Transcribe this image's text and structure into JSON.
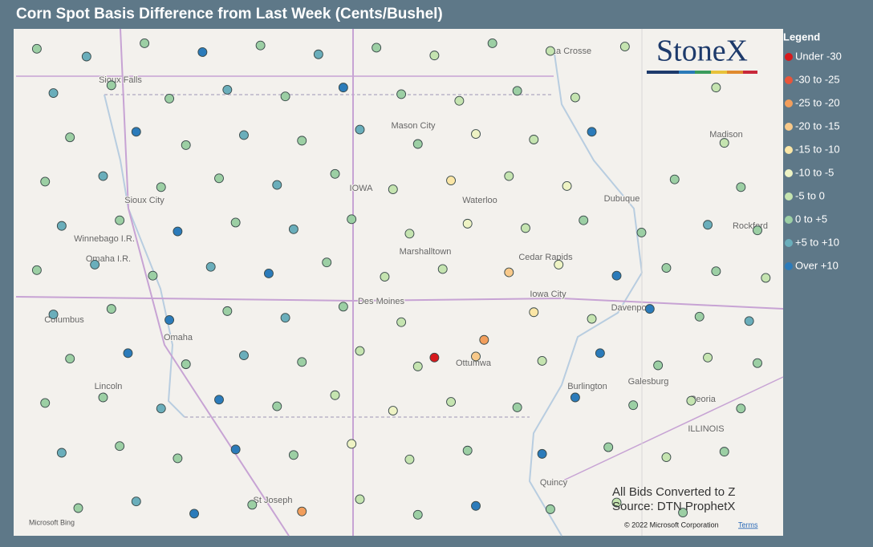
{
  "header": {
    "title": "Corn Spot Basis Difference from Last Week (Cents/Bushel)"
  },
  "logo": "StoneX",
  "legend": {
    "title": "Legend",
    "items": [
      {
        "label": "Under -30",
        "color": "#d7191c"
      },
      {
        "label": "-30 to -25",
        "color": "#e8553a"
      },
      {
        "label": "-25 to -20",
        "color": "#f29e5c"
      },
      {
        "label": "-20 to -15",
        "color": "#f8c98a"
      },
      {
        "label": "-15 to -10",
        "color": "#fbe6a6"
      },
      {
        "label": "-10 to -5",
        "color": "#eef3c4"
      },
      {
        "label": "-5 to 0",
        "color": "#c5e4b0"
      },
      {
        "label": "0 to +5",
        "color": "#9ccfa4"
      },
      {
        "label": "+5 to +10",
        "color": "#6aaebb"
      },
      {
        "label": "Over +10",
        "color": "#2b7bba"
      }
    ]
  },
  "map": {
    "labels": [
      "IOWA",
      "ILLINOIS",
      "Mason City",
      "Waterloo",
      "Dubuque",
      "Rockford",
      "Madison",
      "La Crosse",
      "Sioux Falls",
      "Sioux City",
      "Winnebago I.R.",
      "Omaha I.R.",
      "Columbus",
      "Omaha",
      "Lincoln",
      "Marshalltown",
      "Cedar Rapids",
      "Des Moines",
      "Iowa City",
      "Davenport",
      "Ottumwa",
      "Burlington",
      "Galesburg",
      "Peoria",
      "Quincy",
      "St Joseph"
    ],
    "stations": {
      "lon": [
        -97.7,
        -97.1,
        -96.4,
        -95.7,
        -95.0,
        -94.3,
        -93.6,
        -92.9,
        -92.2,
        -91.5,
        -90.6,
        -97.5,
        -96.8,
        -96.1,
        -95.4,
        -94.7,
        -94.0,
        -93.3,
        -92.6,
        -91.9,
        -91.2,
        -89.5,
        -97.3,
        -96.5,
        -95.9,
        -95.2,
        -94.5,
        -93.8,
        -93.1,
        -92.4,
        -91.7,
        -91.0,
        -89.4,
        -97.6,
        -96.9,
        -96.2,
        -95.5,
        -94.8,
        -94.1,
        -93.4,
        -92.7,
        -92.0,
        -91.3,
        -90.0,
        -89.2,
        -97.4,
        -96.7,
        -96.0,
        -95.3,
        -94.6,
        -93.9,
        -93.2,
        -92.5,
        -91.8,
        -91.1,
        -90.4,
        -89.6,
        -89.0,
        -97.7,
        -97.0,
        -96.3,
        -95.6,
        -94.9,
        -94.2,
        -93.5,
        -92.8,
        -92.0,
        -91.4,
        -90.7,
        -90.1,
        -89.5,
        -88.9,
        -97.5,
        -96.8,
        -96.1,
        -95.4,
        -94.7,
        -94.0,
        -93.3,
        -92.9,
        -92.3,
        -91.7,
        -91.0,
        -90.3,
        -89.7,
        -89.1,
        -97.3,
        -96.6,
        -95.9,
        -95.2,
        -94.5,
        -93.8,
        -93.1,
        -92.4,
        -91.6,
        -90.9,
        -90.2,
        -89.6,
        -89.0,
        -97.6,
        -96.9,
        -96.2,
        -95.5,
        -94.8,
        -94.1,
        -93.4,
        -92.7,
        -91.9,
        -91.2,
        -90.5,
        -89.8,
        -89.2,
        -97.4,
        -96.7,
        -96.0,
        -95.3,
        -94.6,
        -93.9,
        -93.2,
        -92.5,
        -91.6,
        -90.8,
        -90.1,
        -89.4,
        -97.2,
        -96.5,
        -95.8,
        -95.1,
        -94.5,
        -93.8,
        -93.1,
        -92.4,
        -91.5,
        -90.7,
        -89.9
      ],
      "lat": [
        43.85,
        43.78,
        43.9,
        43.82,
        43.88,
        43.8,
        43.86,
        43.79,
        43.9,
        43.83,
        43.87,
        43.45,
        43.52,
        43.4,
        43.48,
        43.42,
        43.5,
        43.44,
        43.38,
        43.47,
        43.41,
        43.5,
        43.05,
        43.1,
        42.98,
        43.07,
        43.02,
        43.12,
        42.99,
        43.08,
        43.03,
        43.1,
        43.0,
        42.65,
        42.7,
        42.6,
        42.68,
        42.62,
        42.72,
        42.58,
        42.66,
        42.7,
        42.61,
        42.67,
        42.6,
        42.25,
        42.3,
        42.2,
        42.28,
        42.22,
        42.31,
        42.18,
        42.27,
        42.23,
        42.3,
        42.19,
        42.26,
        42.21,
        41.85,
        41.9,
        41.8,
        41.88,
        41.82,
        41.92,
        41.79,
        41.86,
        41.83,
        41.9,
        41.8,
        41.87,
        41.84,
        41.78,
        41.45,
        41.5,
        41.4,
        41.48,
        41.42,
        41.52,
        41.38,
        41.06,
        41.22,
        41.47,
        41.41,
        41.5,
        41.43,
        41.39,
        41.05,
        41.1,
        41.0,
        41.08,
        41.02,
        41.12,
        40.98,
        41.07,
        41.03,
        41.1,
        40.99,
        41.06,
        41.01,
        40.65,
        40.7,
        40.6,
        40.68,
        40.62,
        40.72,
        40.58,
        40.66,
        40.61,
        40.7,
        40.63,
        40.67,
        40.6,
        40.2,
        40.26,
        40.15,
        40.23,
        40.18,
        40.28,
        40.14,
        40.22,
        40.19,
        40.25,
        40.16,
        40.21,
        39.7,
        39.76,
        39.65,
        39.73,
        39.67,
        39.78,
        39.64,
        39.72,
        39.69,
        39.75,
        39.66
      ],
      "bin": [
        7,
        8,
        7,
        9,
        7,
        8,
        7,
        6,
        7,
        6,
        6,
        8,
        7,
        7,
        8,
        7,
        9,
        7,
        6,
        7,
        6,
        6,
        7,
        9,
        7,
        8,
        7,
        8,
        7,
        5,
        6,
        9,
        6,
        7,
        8,
        7,
        7,
        8,
        7,
        6,
        4,
        6,
        5,
        7,
        7,
        8,
        7,
        9,
        7,
        8,
        7,
        6,
        5,
        6,
        7,
        7,
        8,
        7,
        7,
        8,
        7,
        8,
        9,
        7,
        6,
        6,
        3,
        5,
        9,
        7,
        7,
        6,
        8,
        7,
        9,
        7,
        8,
        7,
        6,
        0,
        2,
        4,
        6,
        9,
        7,
        8,
        7,
        9,
        7,
        8,
        7,
        6,
        6,
        3,
        6,
        9,
        7,
        6,
        7,
        7,
        7,
        8,
        9,
        7,
        6,
        5,
        6,
        7,
        9,
        7,
        6,
        7,
        8,
        7,
        7,
        9,
        7,
        5,
        6,
        7,
        9,
        7,
        6,
        7,
        7,
        8,
        9,
        7,
        2,
        6,
        7,
        9,
        7,
        6,
        7
      ]
    }
  },
  "notes": [
    "All Bids Converted to Z",
    "Source: DTN ProphetX"
  ],
  "attribution": {
    "bing": "Microsoft Bing",
    "copyright": "© 2022 Microsoft Corporation",
    "terms": "Terms"
  }
}
